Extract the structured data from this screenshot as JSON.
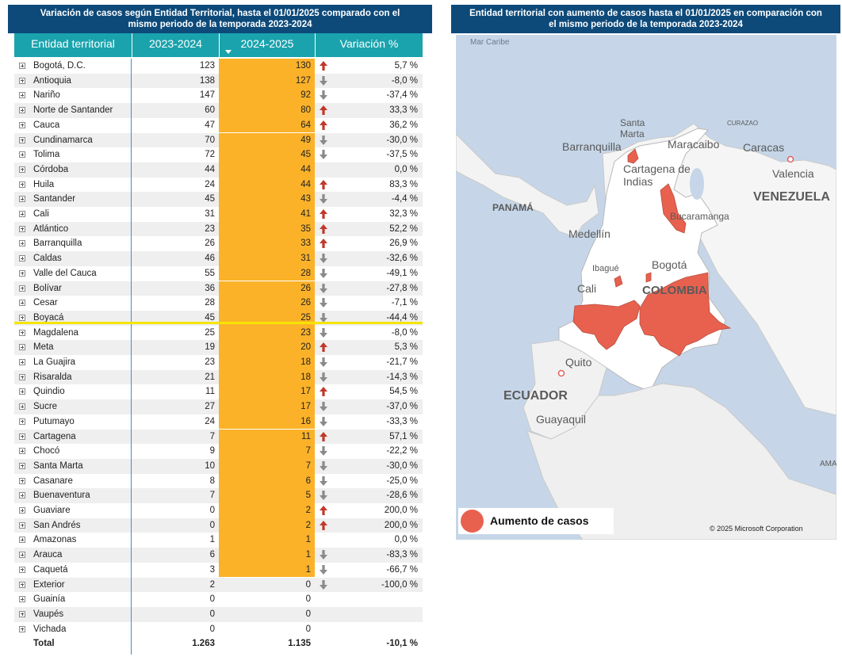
{
  "left_panel": {
    "title_line1": "Variación de casos según Entidad Territorial, hasta el 01/01/2025 comparado con el",
    "title_line2": "mismo periodo de la temporada 2023-2024",
    "columns": [
      "Entidad territorial",
      "2023-2024",
      "2024-2025",
      "Variación %"
    ],
    "sorted_column": "2024-2025",
    "highlight_color": "#fbb229",
    "rows": [
      {
        "name": "Bogotá, D.C.",
        "v2324": "123",
        "v2425": "130",
        "trend": "up",
        "pct": "5,7 %"
      },
      {
        "name": "Antioquia",
        "v2324": "138",
        "v2425": "127",
        "trend": "down",
        "pct": "-8,0 %"
      },
      {
        "name": "Nariño",
        "v2324": "147",
        "v2425": "92",
        "trend": "down",
        "pct": "-37,4 %"
      },
      {
        "name": "Norte de Santander",
        "v2324": "60",
        "v2425": "80",
        "trend": "up",
        "pct": "33,3 %"
      },
      {
        "name": "Cauca",
        "v2324": "47",
        "v2425": "64",
        "trend": "up",
        "pct": "36,2 %"
      },
      {
        "name": "Cundinamarca",
        "v2324": "70",
        "v2425": "49",
        "trend": "down",
        "pct": "-30,0 %"
      },
      {
        "name": "Tolima",
        "v2324": "72",
        "v2425": "45",
        "trend": "down",
        "pct": "-37,5 %"
      },
      {
        "name": "Córdoba",
        "v2324": "44",
        "v2425": "44",
        "trend": "none",
        "pct": "0,0 %"
      },
      {
        "name": "Huila",
        "v2324": "24",
        "v2425": "44",
        "trend": "up",
        "pct": "83,3 %"
      },
      {
        "name": "Santander",
        "v2324": "45",
        "v2425": "43",
        "trend": "down",
        "pct": "-4,4 %"
      },
      {
        "name": "Cali",
        "v2324": "31",
        "v2425": "41",
        "trend": "up",
        "pct": "32,3 %"
      },
      {
        "name": "Atlántico",
        "v2324": "23",
        "v2425": "35",
        "trend": "up",
        "pct": "52,2 %"
      },
      {
        "name": "Barranquilla",
        "v2324": "26",
        "v2425": "33",
        "trend": "up",
        "pct": "26,9 %"
      },
      {
        "name": "Caldas",
        "v2324": "46",
        "v2425": "31",
        "trend": "down",
        "pct": "-32,6 %"
      },
      {
        "name": "Valle del Cauca",
        "v2324": "55",
        "v2425": "28",
        "trend": "down",
        "pct": "-49,1 %"
      },
      {
        "name": "Bolívar",
        "v2324": "36",
        "v2425": "26",
        "trend": "down",
        "pct": "-27,8 %"
      },
      {
        "name": "Cesar",
        "v2324": "28",
        "v2425": "26",
        "trend": "down",
        "pct": "-7,1 %"
      },
      {
        "name": "Boyacá",
        "v2324": "45",
        "v2425": "25",
        "trend": "down",
        "pct": "-44,4 %"
      },
      {
        "name": "Magdalena",
        "v2324": "25",
        "v2425": "23",
        "trend": "down",
        "pct": "-8,0 %"
      },
      {
        "name": "Meta",
        "v2324": "19",
        "v2425": "20",
        "trend": "up",
        "pct": "5,3 %"
      },
      {
        "name": "La Guajira",
        "v2324": "23",
        "v2425": "18",
        "trend": "down",
        "pct": "-21,7 %"
      },
      {
        "name": "Risaralda",
        "v2324": "21",
        "v2425": "18",
        "trend": "down",
        "pct": "-14,3 %"
      },
      {
        "name": "Quindio",
        "v2324": "11",
        "v2425": "17",
        "trend": "up",
        "pct": "54,5 %"
      },
      {
        "name": "Sucre",
        "v2324": "27",
        "v2425": "17",
        "trend": "down",
        "pct": "-37,0 %"
      },
      {
        "name": "Putumayo",
        "v2324": "24",
        "v2425": "16",
        "trend": "down",
        "pct": "-33,3 %"
      },
      {
        "name": "Cartagena",
        "v2324": "7",
        "v2425": "11",
        "trend": "up",
        "pct": "57,1 %"
      },
      {
        "name": "Chocó",
        "v2324": "9",
        "v2425": "7",
        "trend": "down",
        "pct": "-22,2 %"
      },
      {
        "name": "Santa Marta",
        "v2324": "10",
        "v2425": "7",
        "trend": "down",
        "pct": "-30,0 %"
      },
      {
        "name": "Casanare",
        "v2324": "8",
        "v2425": "6",
        "trend": "down",
        "pct": "-25,0 %"
      },
      {
        "name": "Buenaventura",
        "v2324": "7",
        "v2425": "5",
        "trend": "down",
        "pct": "-28,6 %"
      },
      {
        "name": "Guaviare",
        "v2324": "0",
        "v2425": "2",
        "trend": "up",
        "pct": "200,0 %"
      },
      {
        "name": "San Andrés",
        "v2324": "0",
        "v2425": "2",
        "trend": "up",
        "pct": "200,0 %"
      },
      {
        "name": "Amazonas",
        "v2324": "1",
        "v2425": "1",
        "trend": "none",
        "pct": "0,0 %"
      },
      {
        "name": "Arauca",
        "v2324": "6",
        "v2425": "1",
        "trend": "down",
        "pct": "-83,3 %"
      },
      {
        "name": "Caquetá",
        "v2324": "3",
        "v2425": "1",
        "trend": "down",
        "pct": "-66,7 %"
      },
      {
        "name": "Exterior",
        "v2324": "2",
        "v2425": "0",
        "trend": "down",
        "pct": "-100,0 %"
      },
      {
        "name": "Guainía",
        "v2324": "0",
        "v2425": "0",
        "trend": "none",
        "pct": ""
      },
      {
        "name": "Vaupés",
        "v2324": "0",
        "v2425": "0",
        "trend": "none",
        "pct": ""
      },
      {
        "name": "Vichada",
        "v2324": "0",
        "v2425": "0",
        "trend": "none",
        "pct": ""
      }
    ],
    "total": {
      "label": "Total",
      "v2324": "1.263",
      "v2425": "1.135",
      "pct": "-10,1 %"
    }
  },
  "right_panel": {
    "title_line1": "Entidad territorial con aumento de casos hasta el 01/01/2025 en comparación con",
    "title_line2": "el mismo periodo de la temporada 2023-2024",
    "legend_label": "Aumento de casos",
    "legend_color": "#e8614f",
    "copyright": "© 2025 Microsoft Corporation",
    "map_labels": {
      "mar_caribe": "Mar Caribe",
      "santa_marta": "Santa",
      "santa_marta2": "Marta",
      "curazao": "CURAZAO",
      "barranquilla": "Barranquilla",
      "maracaibo": "Maracaibo",
      "caracas": "Caracas",
      "cartagena": "Cartagena de",
      "cartagena2": "Indias",
      "valencia": "Valencia",
      "panama": "PANAMÁ",
      "venezuela": "VENEZUELA",
      "bucaramanga": "Bucaramanga",
      "medellin": "Medellín",
      "ibague": "Ibagué",
      "bogota": "Bogotá",
      "cali": "Cali",
      "colombia": "COLOMBIA",
      "quito": "Quito",
      "ecuador": "ECUADOR",
      "guayaquil": "Guayaquil",
      "ama": "AMA"
    }
  }
}
